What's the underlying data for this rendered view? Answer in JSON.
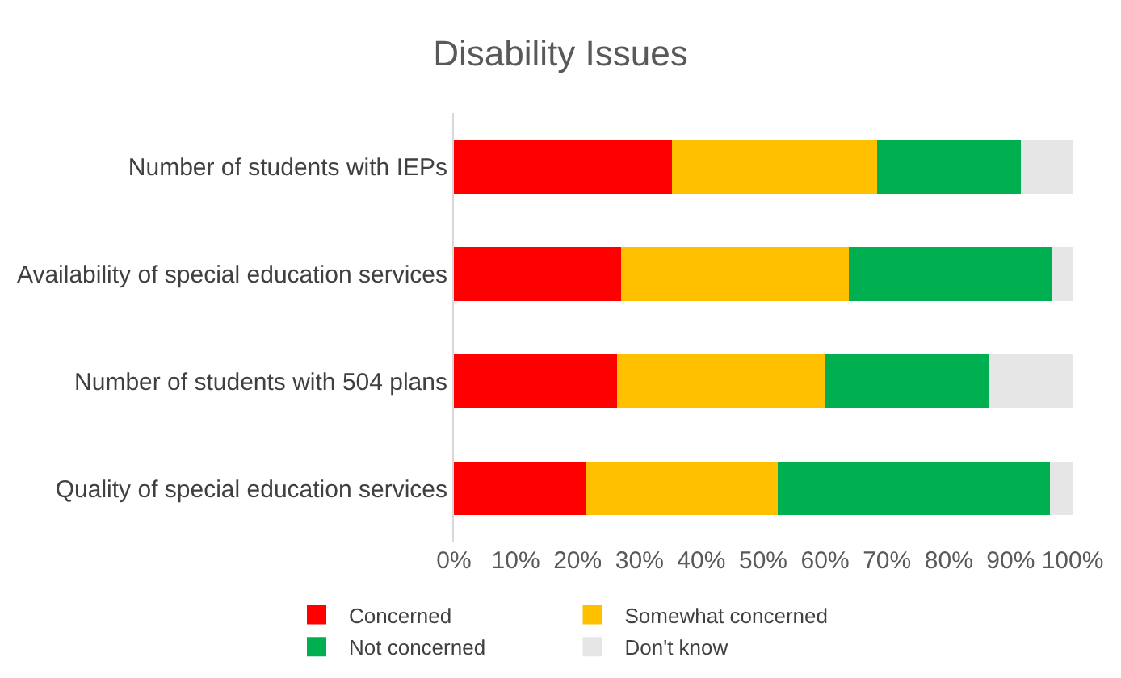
{
  "chart_data": {
    "type": "bar",
    "title": "Disability Issues",
    "orientation": "horizontal",
    "stacked": true,
    "categories": [
      "Number of students with IEPs",
      "Availability of special education services",
      "Number of students with 504 plans",
      "Quality of special education services"
    ],
    "series": [
      {
        "name": "Concerned",
        "color": "#ff0000",
        "values": [
          35.3,
          27.0,
          26.4,
          21.3
        ]
      },
      {
        "name": "Somewhat concerned",
        "color": "#ffc000",
        "values": [
          33.1,
          36.8,
          33.6,
          31.0
        ]
      },
      {
        "name": "Not concerned",
        "color": "#00b050",
        "values": [
          23.3,
          33.0,
          26.4,
          44.0
        ]
      },
      {
        "name": "Don't know",
        "color": "#e7e6e6",
        "values": [
          8.3,
          3.2,
          13.6,
          3.7
        ]
      }
    ],
    "xlim": [
      0,
      100
    ],
    "xticks": [
      {
        "value": 0,
        "label": "0%"
      },
      {
        "value": 10,
        "label": "10%"
      },
      {
        "value": 20,
        "label": "20%"
      },
      {
        "value": 30,
        "label": "30%"
      },
      {
        "value": 40,
        "label": "40%"
      },
      {
        "value": 50,
        "label": "50%"
      },
      {
        "value": 60,
        "label": "60%"
      },
      {
        "value": 70,
        "label": "70%"
      },
      {
        "value": 80,
        "label": "80%"
      },
      {
        "value": 90,
        "label": "90%"
      },
      {
        "value": 100,
        "label": "100%"
      }
    ],
    "grid": false,
    "legend": "bottom"
  }
}
